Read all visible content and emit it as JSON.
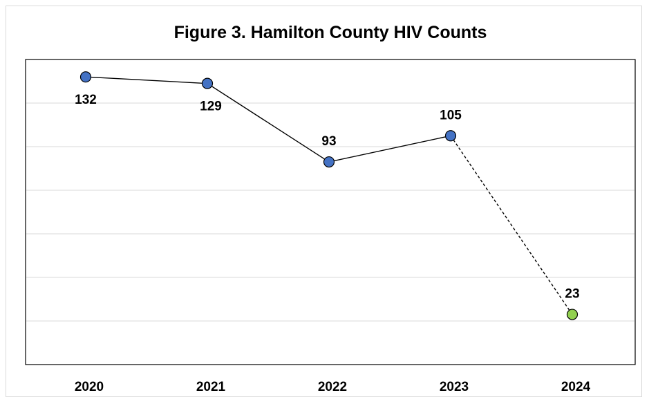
{
  "chart_data": {
    "type": "line",
    "title": "Figure 3. Hamilton County HIV Counts",
    "xlabel": "",
    "ylabel": "",
    "categories": [
      "2020",
      "2021",
      "2022",
      "2023",
      "2024"
    ],
    "series": [
      {
        "values": [
          132,
          129,
          93,
          105,
          23
        ],
        "line_color": "#000000",
        "marker_color": "#4472c4",
        "last_marker_color": "#92d050",
        "last_segment_dashed": true
      }
    ],
    "ylim": [
      0,
      140
    ],
    "y_gridline_step": 20,
    "y_tick_labels_shown": false,
    "grid": true,
    "legend": "none"
  }
}
